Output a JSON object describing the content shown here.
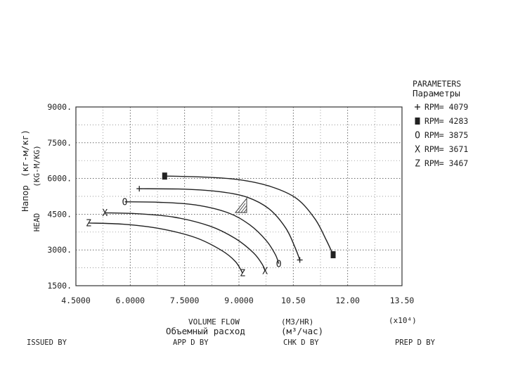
{
  "chart_data": {
    "type": "line",
    "xlabel": "VOLUME FLOW",
    "xlabel_ru": "Объемный расход",
    "x_unit": "(M3/HR)",
    "x_unit_ru": "(м³/час)",
    "x_multiplier": "(x10⁴)",
    "ylabel": "HEAD",
    "ylabel_unit": "(KG-M/KG)",
    "ylabel_ru": "Напор",
    "ylabel_unit_ru": "(кг-м/кг)",
    "xlim": [
      4.5,
      13.5
    ],
    "ylim": [
      1500,
      9000
    ],
    "x_ticks": [
      {
        "v": 4.5,
        "label": "4.5000"
      },
      {
        "v": 6.0,
        "label": "6.0000"
      },
      {
        "v": 7.5,
        "label": "7.5000"
      },
      {
        "v": 9.0,
        "label": "9.0000"
      },
      {
        "v": 10.5,
        "label": "10.50"
      },
      {
        "v": 12.0,
        "label": "12.00"
      },
      {
        "v": 13.5,
        "label": "13.50"
      }
    ],
    "y_ticks": [
      {
        "v": 1500,
        "label": "1500."
      },
      {
        "v": 3000,
        "label": "3000."
      },
      {
        "v": 4500,
        "label": "4500."
      },
      {
        "v": 6000,
        "label": "6000."
      },
      {
        "v": 7500,
        "label": "7500."
      },
      {
        "v": 9000,
        "label": "9000."
      }
    ],
    "grid": true,
    "legend_title": "PARAMETERS",
    "legend_title_ru": "Параметры",
    "legend_placement": "right",
    "series": [
      {
        "name": "RPM= 4079",
        "symbol": "+",
        "points": [
          [
            6.25,
            5570
          ],
          [
            7.5,
            5550
          ],
          [
            8.5,
            5440
          ],
          [
            9.25,
            5200
          ],
          [
            9.85,
            4700
          ],
          [
            10.3,
            3900
          ],
          [
            10.55,
            3100
          ],
          [
            10.68,
            2580
          ]
        ]
      },
      {
        "name": "RPM= 4283",
        "symbol": "■",
        "points": [
          [
            6.95,
            6100
          ],
          [
            8.0,
            6060
          ],
          [
            9.0,
            5950
          ],
          [
            9.9,
            5650
          ],
          [
            10.6,
            5150
          ],
          [
            11.1,
            4300
          ],
          [
            11.4,
            3450
          ],
          [
            11.6,
            2800
          ]
        ]
      },
      {
        "name": "RPM= 3875",
        "symbol": "O",
        "points": [
          [
            5.85,
            5020
          ],
          [
            6.8,
            5000
          ],
          [
            7.8,
            4890
          ],
          [
            8.7,
            4560
          ],
          [
            9.3,
            4050
          ],
          [
            9.75,
            3400
          ],
          [
            10.0,
            2820
          ],
          [
            10.1,
            2420
          ]
        ]
      },
      {
        "name": "RPM= 3671",
        "symbol": "X",
        "points": [
          [
            5.3,
            4560
          ],
          [
            6.2,
            4520
          ],
          [
            7.2,
            4380
          ],
          [
            8.2,
            4000
          ],
          [
            8.9,
            3480
          ],
          [
            9.4,
            2880
          ],
          [
            9.65,
            2380
          ],
          [
            9.72,
            2120
          ]
        ]
      },
      {
        "name": "RPM= 3467",
        "symbol": "Z",
        "points": [
          [
            4.85,
            4130
          ],
          [
            5.8,
            4080
          ],
          [
            6.8,
            3900
          ],
          [
            7.8,
            3520
          ],
          [
            8.5,
            3000
          ],
          [
            8.9,
            2520
          ],
          [
            9.1,
            2030
          ]
        ]
      }
    ]
  },
  "footer": {
    "issued_by": "ISSUED BY",
    "app_d_by": "APP D BY",
    "chk_d_by": "CHK D BY",
    "prep_d_by": "PREP D BY"
  }
}
